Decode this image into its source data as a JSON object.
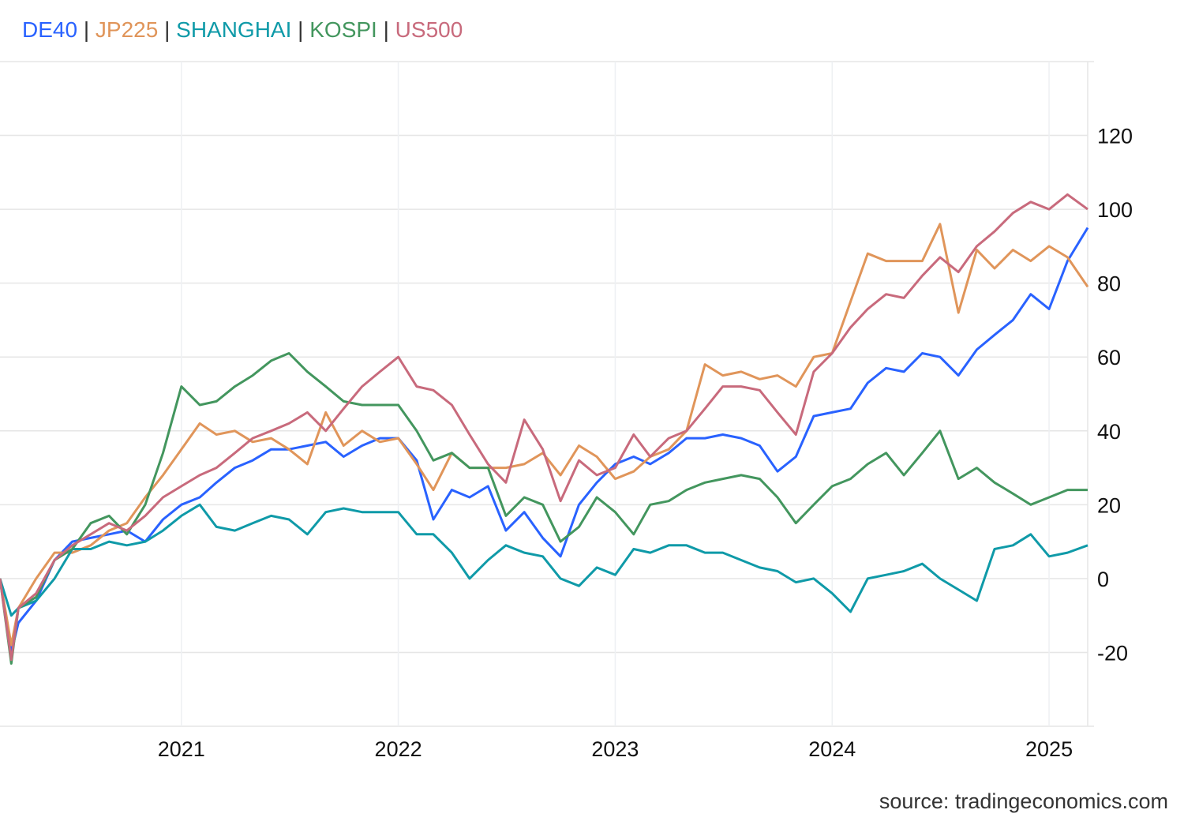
{
  "chart_data": {
    "type": "line",
    "title": "",
    "xlabel": "",
    "ylabel": "",
    "ylim": [
      -40,
      140
    ],
    "y_ticks": [
      -20,
      0,
      20,
      40,
      60,
      80,
      100,
      120
    ],
    "x_ticks": [
      "2021",
      "2022",
      "2023",
      "2024",
      "2025"
    ],
    "x_range": [
      "2020-03-01",
      "2025-03-07"
    ],
    "grid": true,
    "y_axis_side": "right",
    "legend_placement": "top-left",
    "dates": [
      "2020-03-01",
      "2020-03-20",
      "2020-04-01",
      "2020-05-01",
      "2020-06-01",
      "2020-07-01",
      "2020-08-01",
      "2020-09-01",
      "2020-10-01",
      "2020-11-01",
      "2020-12-01",
      "2021-01-01",
      "2021-02-01",
      "2021-03-01",
      "2021-04-01",
      "2021-05-01",
      "2021-06-01",
      "2021-07-01",
      "2021-08-01",
      "2021-09-01",
      "2021-10-01",
      "2021-11-01",
      "2021-12-01",
      "2022-01-01",
      "2022-02-01",
      "2022-03-01",
      "2022-04-01",
      "2022-05-01",
      "2022-06-01",
      "2022-07-01",
      "2022-08-01",
      "2022-09-01",
      "2022-10-01",
      "2022-11-01",
      "2022-12-01",
      "2023-01-01",
      "2023-02-01",
      "2023-03-01",
      "2023-04-01",
      "2023-05-01",
      "2023-06-01",
      "2023-07-01",
      "2023-08-01",
      "2023-09-01",
      "2023-10-01",
      "2023-11-01",
      "2023-12-01",
      "2024-01-01",
      "2024-02-01",
      "2024-03-01",
      "2024-04-01",
      "2024-05-01",
      "2024-06-01",
      "2024-07-01",
      "2024-08-01",
      "2024-09-01",
      "2024-10-01",
      "2024-11-01",
      "2024-12-01",
      "2025-01-01",
      "2025-02-01",
      "2025-03-07"
    ],
    "series": [
      {
        "name": "DE40",
        "color": "#2962ff",
        "values": [
          0,
          -20,
          -12,
          -6,
          5,
          10,
          11,
          12,
          13,
          10,
          16,
          20,
          22,
          26,
          30,
          32,
          35,
          35,
          36,
          37,
          33,
          36,
          38,
          38,
          32,
          16,
          24,
          22,
          25,
          13,
          18,
          11,
          6,
          20,
          26,
          31,
          33,
          31,
          34,
          38,
          38,
          39,
          38,
          36,
          29,
          33,
          44,
          45,
          46,
          53,
          57,
          56,
          61,
          60,
          55,
          62,
          66,
          70,
          77,
          73,
          86,
          95
        ]
      },
      {
        "name": "JP225",
        "color": "#e0955a",
        "values": [
          0,
          -18,
          -8,
          0,
          7,
          7,
          9,
          13,
          15,
          22,
          28,
          35,
          42,
          39,
          40,
          37,
          38,
          35,
          31,
          45,
          36,
          40,
          37,
          38,
          31,
          24,
          34,
          30,
          30,
          30,
          31,
          34,
          28,
          36,
          33,
          27,
          29,
          33,
          35,
          40,
          58,
          55,
          56,
          54,
          55,
          52,
          60,
          61,
          75,
          88,
          86,
          86,
          86,
          96,
          72,
          89,
          84,
          89,
          86,
          90,
          87,
          79
        ]
      },
      {
        "name": "SHANGHAI",
        "color": "#0f9aa8",
        "values": [
          0,
          -10,
          -8,
          -6,
          0,
          8,
          8,
          10,
          9,
          10,
          13,
          17,
          20,
          14,
          13,
          15,
          17,
          16,
          12,
          18,
          19,
          18,
          18,
          18,
          12,
          12,
          7,
          0,
          5,
          9,
          7,
          6,
          0,
          -2,
          3,
          1,
          8,
          7,
          9,
          9,
          7,
          7,
          5,
          3,
          2,
          -1,
          0,
          -4,
          -9,
          0,
          1,
          2,
          4,
          0,
          -3,
          -6,
          8,
          9,
          12,
          6,
          7,
          9
        ]
      },
      {
        "name": "KOSPI",
        "color": "#43965e",
        "values": [
          0,
          -23,
          -8,
          -5,
          5,
          8,
          15,
          17,
          12,
          20,
          34,
          52,
          47,
          48,
          52,
          55,
          59,
          61,
          56,
          52,
          48,
          47,
          47,
          47,
          40,
          32,
          34,
          30,
          30,
          17,
          22,
          20,
          10,
          14,
          22,
          18,
          12,
          20,
          21,
          24,
          26,
          27,
          28,
          27,
          22,
          15,
          20,
          25,
          27,
          31,
          34,
          28,
          34,
          40,
          27,
          30,
          26,
          23,
          20,
          22,
          24,
          24
        ]
      },
      {
        "name": "US500",
        "color": "#c86a7c",
        "values": [
          0,
          -22,
          -8,
          -4,
          5,
          9,
          12,
          15,
          13,
          17,
          22,
          25,
          28,
          30,
          34,
          38,
          40,
          42,
          45,
          40,
          46,
          52,
          56,
          60,
          52,
          51,
          47,
          39,
          31,
          26,
          43,
          35,
          21,
          32,
          28,
          30,
          39,
          33,
          38,
          40,
          46,
          52,
          52,
          51,
          45,
          39,
          56,
          61,
          68,
          73,
          77,
          76,
          82,
          87,
          83,
          90,
          94,
          99,
          102,
          100,
          104,
          100
        ]
      }
    ],
    "legend_separator": "|",
    "source": "source: tradingeconomics.com"
  }
}
